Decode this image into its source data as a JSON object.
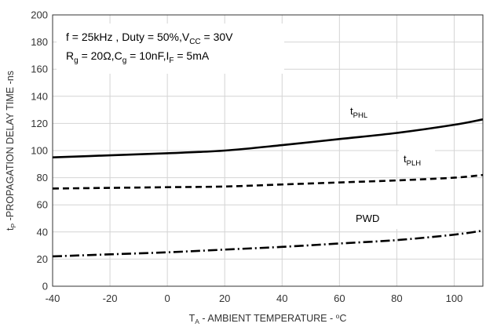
{
  "chart_data": {
    "type": "line",
    "xlim": [
      -40,
      110
    ],
    "ylim": [
      0,
      200
    ],
    "x_ticks": [
      "-40",
      "-20",
      "0",
      "20",
      "40",
      "60",
      "80",
      "100"
    ],
    "y_ticks": [
      "0",
      "20",
      "40",
      "60",
      "80",
      "100",
      "120",
      "140",
      "160",
      "180",
      "200"
    ],
    "xlabel": {
      "prefix": "T",
      "sub": "A",
      "text": " - AMBIENT TEMPERATURE - ",
      "unit_sup": "o",
      "unit": "C"
    },
    "ylabel": {
      "prefix": "t",
      "sub": "P",
      "text": " -PROPAGATION DELAY TIME -ns"
    },
    "grid": true,
    "annotation": {
      "line1": {
        "f": "f = 25kHz , Duty = 50%,V",
        "sub": "CC",
        "rest": " = 30V"
      },
      "line2": {
        "r": "R",
        "r_sub": "g",
        "r_val": " = 20Ω,C",
        "c_sub": "g",
        "c_val": " = 10nF,I",
        "i_sub": "F",
        "i_val": " = 5mA"
      }
    },
    "series": [
      {
        "name": "tPHL",
        "label_main": "t",
        "label_sub": "PHL",
        "dash": "solid",
        "color": "#000000",
        "x": [
          -40,
          -20,
          0,
          20,
          40,
          60,
          80,
          100,
          110
        ],
        "y": [
          95,
          96.5,
          98,
          100,
          104,
          108.5,
          113,
          119,
          123
        ]
      },
      {
        "name": "tPLH",
        "label_main": "t",
        "label_sub": "PLH",
        "dash": "dash",
        "color": "#000000",
        "x": [
          -40,
          -20,
          0,
          20,
          40,
          60,
          80,
          100,
          110
        ],
        "y": [
          72,
          72.5,
          73,
          73.5,
          75,
          76.5,
          78,
          80,
          82
        ]
      },
      {
        "name": "PWD",
        "label_main": "PWD",
        "label_sub": "",
        "dash": "dashdot",
        "color": "#000000",
        "x": [
          -40,
          -20,
          0,
          20,
          40,
          60,
          80,
          100,
          110
        ],
        "y": [
          22,
          23.5,
          25,
          27,
          29,
          31.5,
          34,
          38,
          41
        ]
      }
    ]
  }
}
